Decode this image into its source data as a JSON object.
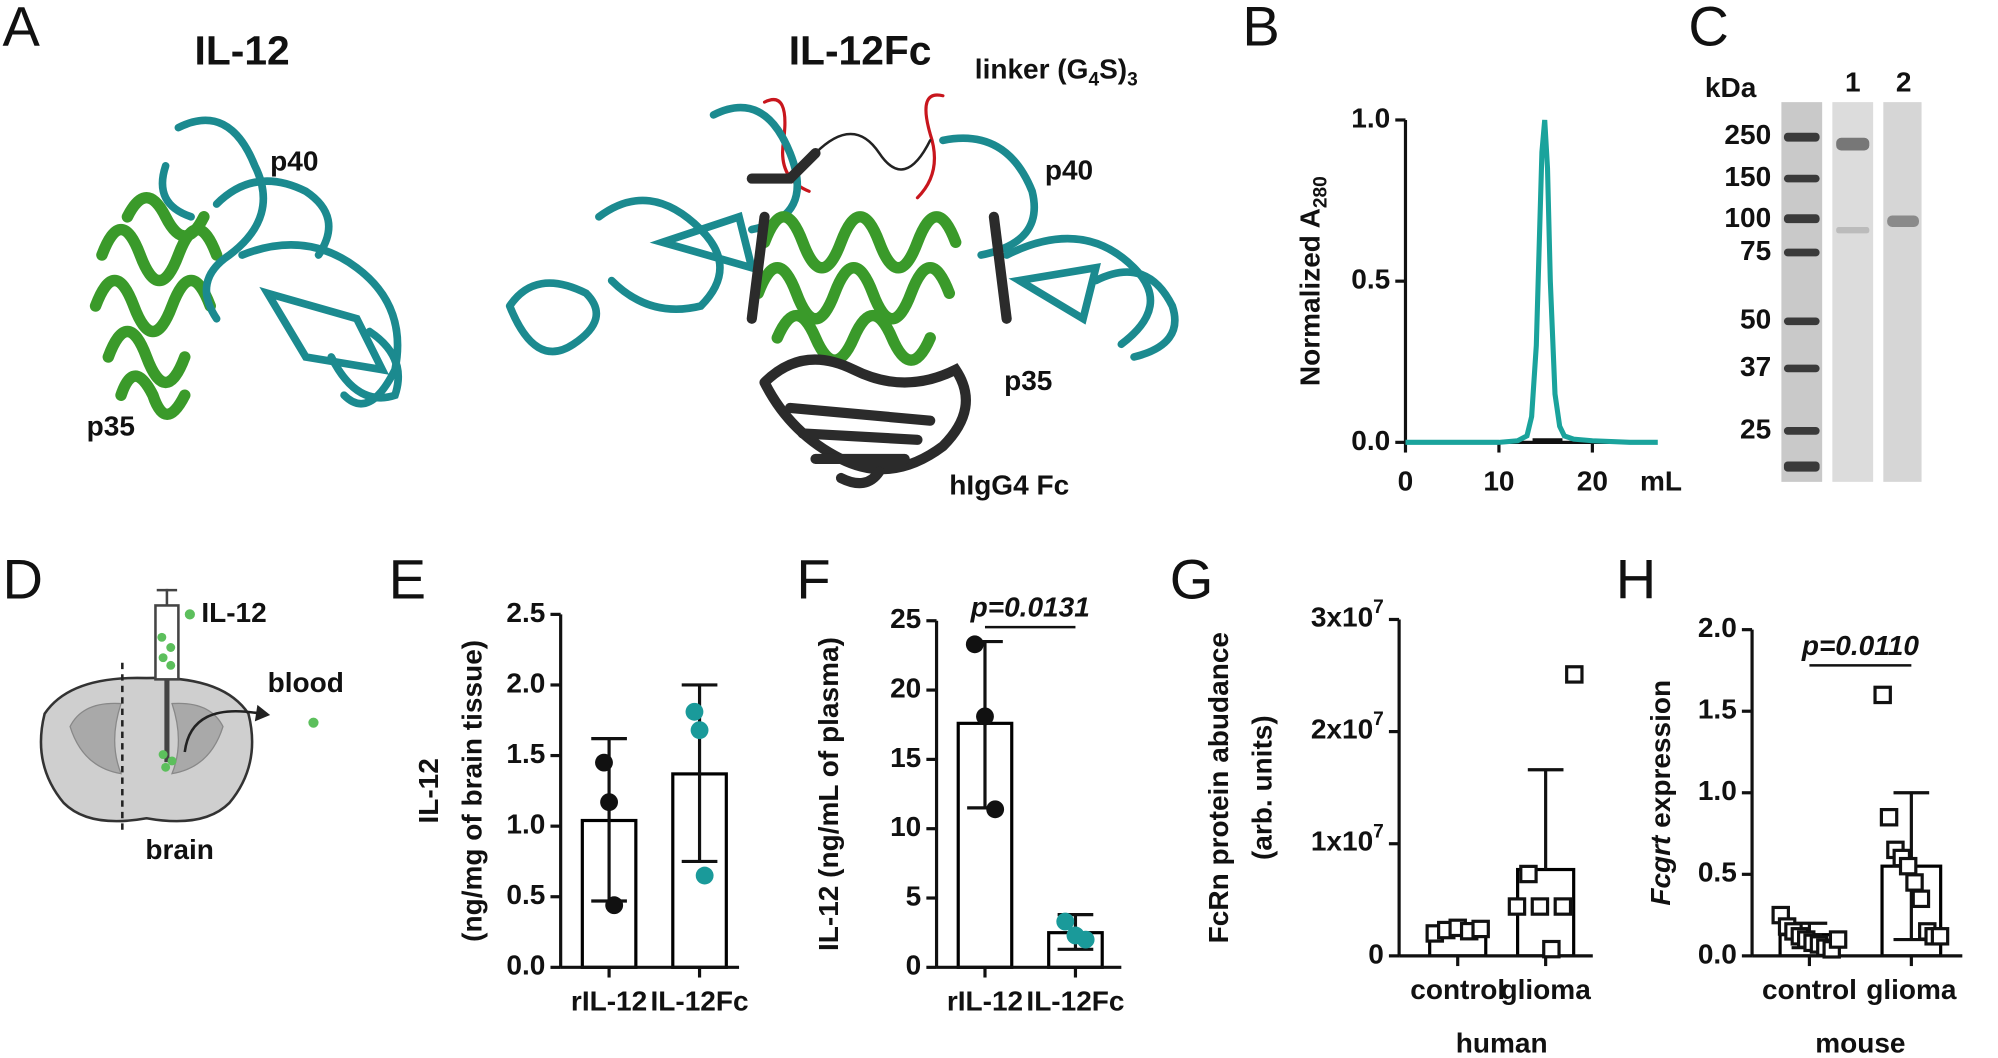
{
  "figure": {
    "panel_letters": [
      "A",
      "B",
      "C",
      "D",
      "E",
      "F",
      "G",
      "H"
    ]
  },
  "structures": {
    "il12_title": "IL-12",
    "il12fc_title": "IL-12Fc",
    "p40_left": "p40",
    "p35_left": "p35",
    "p40_right": "p40",
    "p35_right": "p35",
    "linker": [
      "linker (G",
      "4",
      "S)",
      "3"
    ],
    "fc": "hIgG4 Fc"
  },
  "gel": {
    "unit": "kDa",
    "lanes": [
      "1",
      "2"
    ],
    "markers": [
      250,
      150,
      100,
      75,
      50,
      37,
      25
    ]
  },
  "schematic": {
    "cytokine": "IL-12",
    "blood": "blood",
    "brain": "brain"
  },
  "chart_data": [
    {
      "type": "line",
      "ylabel": "Normalized A",
      "ylabel_sub": "280",
      "xlabel": "mL",
      "color": "#1aa39c",
      "x": [
        0,
        5,
        10,
        12,
        13,
        13.5,
        14,
        14.3,
        14.6,
        14.9,
        15.2,
        15.5,
        16,
        16.5,
        17,
        18,
        20,
        24,
        27
      ],
      "values": [
        0,
        0,
        0,
        0.005,
        0.02,
        0.08,
        0.3,
        0.6,
        0.9,
        1.0,
        0.85,
        0.5,
        0.15,
        0.05,
        0.02,
        0.01,
        0.005,
        0,
        0
      ],
      "xlim": [
        0,
        27
      ],
      "xticks": [
        0,
        10,
        20
      ],
      "ylim": [
        0,
        1
      ],
      "yticks": [
        {
          "value": 0,
          "label": "0.0"
        },
        0.5,
        {
          "value": 1,
          "label": "1.0"
        }
      ]
    },
    {
      "type": "bar",
      "ylabel": [
        "IL-12",
        "(ng/mg of brain tissue)"
      ],
      "categories": [
        "rIL-12",
        "IL-12Fc"
      ],
      "values": [
        1.04,
        1.37
      ],
      "error_low": [
        0.47,
        0.75
      ],
      "error_high": [
        1.62,
        2.0
      ],
      "points": [
        [
          1.45,
          1.17,
          0.44
        ],
        [
          1.81,
          1.68,
          0.65
        ]
      ],
      "point_colors": [
        "#111111",
        "#1a9a9a"
      ],
      "marker": "circle",
      "bar_fill": "#ffffff",
      "bar_edge": "#000000",
      "ylim": [
        0,
        2.5
      ],
      "yticks": [
        {
          "value": 0,
          "label": "0.0"
        },
        0.5,
        {
          "value": 1,
          "label": "1.0"
        },
        1.5,
        {
          "value": 2,
          "label": "2.0"
        },
        2.5
      ]
    },
    {
      "type": "bar",
      "ylabel": [
        "IL-12 (ng/mL of plasma)"
      ],
      "categories": [
        "rIL-12",
        "IL-12Fc"
      ],
      "values": [
        17.6,
        2.5
      ],
      "error_low": [
        11.5,
        1.3
      ],
      "error_high": [
        23.5,
        3.8
      ],
      "points": [
        [
          23.3,
          18.1,
          11.4
        ],
        [
          3.3,
          2.3,
          2.0
        ]
      ],
      "point_colors": [
        "#111111",
        "#1a9a9a"
      ],
      "marker": "circle",
      "bar_fill": "#ffffff",
      "bar_edge": "#000000",
      "annotation": "p=0.0131",
      "ylim": [
        0,
        25
      ],
      "yticks": [
        0,
        5,
        10,
        15,
        20,
        25
      ]
    },
    {
      "type": "bar",
      "ylabel": [
        "FcRn protein abudance",
        "(arb. units)"
      ],
      "categories": [
        "control",
        "glioma"
      ],
      "group_label": "human",
      "values": [
        2300000,
        7700000
      ],
      "error_low": [
        1900000,
        null
      ],
      "error_high": [
        2700000,
        16600000
      ],
      "points": [
        [
          2000000,
          2300000,
          2500000,
          2200000,
          2400000
        ],
        [
          4400000,
          7300000,
          4400000,
          600000,
          4400000,
          25100000
        ]
      ],
      "point_colors": [
        "#111111",
        "#111111"
      ],
      "marker": "square",
      "bar_fill": "#ffffff",
      "bar_edge": "#000000",
      "ylim": [
        0,
        30000000
      ],
      "yticks": [
        0,
        {
          "value": 10000000,
          "label": "1x107"
        },
        {
          "value": 20000000,
          "label": "2x107"
        },
        {
          "value": 30000000,
          "label": "3x107"
        }
      ]
    },
    {
      "type": "bar",
      "ylabel": [
        "Fcgrt expression"
      ],
      "categories": [
        "control",
        "glioma"
      ],
      "group_label": "mouse",
      "values": [
        0.13,
        0.55
      ],
      "error_low": [
        0.05,
        0.1
      ],
      "error_high": [
        0.2,
        1.0
      ],
      "points": [
        [
          0.25,
          0.18,
          0.15,
          0.12,
          0.1,
          0.08,
          0.07,
          0.05,
          0.04,
          0.1
        ],
        [
          1.6,
          0.85,
          0.65,
          0.6,
          0.55,
          0.45,
          0.35,
          0.15,
          0.12,
          0.12
        ]
      ],
      "point_colors": [
        "#111111",
        "#111111"
      ],
      "marker": "square",
      "bar_fill": "#ffffff",
      "bar_edge": "#000000",
      "annotation": "p=0.0110",
      "ylim": [
        0,
        2
      ],
      "yticks": [
        {
          "value": 0,
          "label": "0.0"
        },
        0.5,
        {
          "value": 1,
          "label": "1.0"
        },
        1.5,
        {
          "value": 2,
          "label": "2.0"
        }
      ]
    }
  ]
}
